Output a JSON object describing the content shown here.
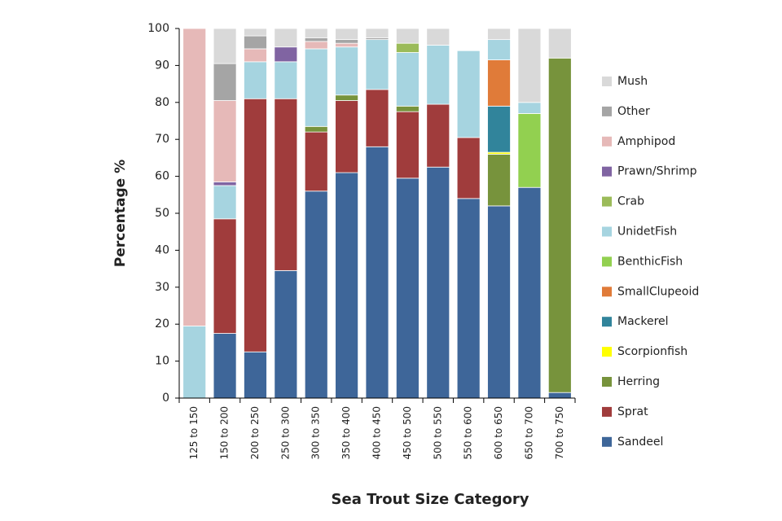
{
  "chart_data": {
    "type": "stacked_bar",
    "y_label": "Percentage %",
    "x_label": "Sea Trout Size Category",
    "categories": [
      "125 to 150",
      "150 to 200",
      "200 to 250",
      "250 to 300",
      "300 to 350",
      "350 to 400",
      "400 to 450",
      "450 to 500",
      "500 to 550",
      "550 to 600",
      "600 to 650",
      "650 to 700",
      "700 to 750"
    ],
    "ylim": [
      0,
      100
    ],
    "yticks": [
      0,
      10,
      20,
      30,
      40,
      50,
      60,
      70,
      80,
      90,
      100
    ],
    "grid": false,
    "legend": "right",
    "series": [
      {
        "name": "Sandeel",
        "color": "#3e6699",
        "values": [
          0,
          17.5,
          12.5,
          34.5,
          56,
          61,
          68,
          59.5,
          62.5,
          54,
          52,
          57,
          1.5
        ]
      },
      {
        "name": "Sprat",
        "color": "#a03c3c",
        "values": [
          0,
          31,
          68.5,
          46.5,
          16,
          19.5,
          15.5,
          18,
          17,
          16.5,
          0,
          0,
          0
        ]
      },
      {
        "name": "Herring",
        "color": "#77933c",
        "values": [
          0,
          0,
          0,
          0,
          1.5,
          1.5,
          0,
          1.5,
          0,
          0,
          14,
          0,
          90.5
        ]
      },
      {
        "name": "Scorpionfish",
        "color": "#ffff00",
        "values": [
          0,
          0,
          0,
          0,
          0,
          0,
          0,
          0,
          0,
          0,
          0.5,
          0,
          0
        ]
      },
      {
        "name": "Mackerel",
        "color": "#31849b",
        "values": [
          0,
          0,
          0,
          0,
          0,
          0,
          0,
          0,
          0,
          0,
          12.5,
          0,
          0
        ]
      },
      {
        "name": "SmallClupeoid",
        "color": "#e07b39",
        "values": [
          0,
          0,
          0,
          0,
          0,
          0,
          0,
          0,
          0,
          0,
          12.5,
          0,
          0
        ]
      },
      {
        "name": "BenthicFish",
        "color": "#92d050",
        "values": [
          0,
          0,
          0,
          0,
          0,
          0,
          0,
          0,
          0,
          0,
          0,
          20,
          0
        ]
      },
      {
        "name": "UnidetFish",
        "color": "#a6d4e0",
        "values": [
          19.5,
          9,
          10,
          10,
          21,
          13,
          13.5,
          14.5,
          16,
          23.5,
          5.5,
          3,
          0
        ]
      },
      {
        "name": "Crab",
        "color": "#9bbb59",
        "values": [
          0,
          0,
          0,
          0,
          0,
          0,
          0,
          2.5,
          0,
          0,
          0,
          0,
          0
        ]
      },
      {
        "name": "Prawn/Shrimp",
        "color": "#8064a2",
        "values": [
          0,
          1,
          0,
          4,
          0,
          0,
          0,
          0,
          0,
          0,
          0,
          0,
          0
        ]
      },
      {
        "name": "Amphipod",
        "color": "#e6b9b8",
        "values": [
          80.5,
          22,
          3.5,
          0,
          2,
          1,
          0,
          0,
          0,
          0,
          0,
          0,
          0
        ]
      },
      {
        "name": "Other",
        "color": "#a5a5a5",
        "values": [
          0,
          10,
          3.5,
          0,
          1,
          1,
          0.5,
          0,
          0,
          0,
          0,
          0,
          0
        ]
      },
      {
        "name": "Mush",
        "color": "#d9d9d9",
        "values": [
          0,
          9.5,
          2,
          5,
          2.5,
          3,
          2.5,
          4,
          4.5,
          0,
          3,
          20,
          8
        ]
      }
    ]
  }
}
